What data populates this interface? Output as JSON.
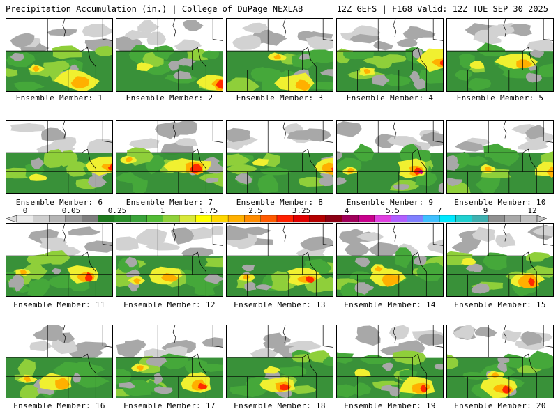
{
  "header": {
    "left_title": "Precipitation Accumulation (in.) | College of DuPage NEXLAB",
    "right_title": "12Z GEFS | F168 Valid: 12Z TUE SEP 30 2025"
  },
  "colorbar": {
    "labels": [
      "0",
      "0.05",
      "0.25",
      "1",
      "1.75",
      "2.5",
      "3.25",
      "4",
      "5.5",
      "7",
      "9",
      "12"
    ],
    "colors": [
      "#eaeaea",
      "#cfcfcf",
      "#b5b5b5",
      "#9a9a9a",
      "#7e7e7e",
      "#1e7a1e",
      "#2b8f2b",
      "#3aa33a",
      "#52bb35",
      "#8fd13a",
      "#d8e83a",
      "#ffff00",
      "#ffd700",
      "#ffb000",
      "#ff8c00",
      "#ff5a00",
      "#ff2000",
      "#e00000",
      "#b40000",
      "#8c0014",
      "#a0005a",
      "#c8008c",
      "#e040e0",
      "#b060ff",
      "#8080ff",
      "#40c0ff",
      "#00e8ff",
      "#20d0d0",
      "#40b0b0",
      "#909090",
      "#a8a8a8",
      "#c0c0c0"
    ]
  },
  "members": [
    {
      "label": "Ensemble Member: 1"
    },
    {
      "label": "Ensemble Member: 2"
    },
    {
      "label": "Ensemble Member: 3"
    },
    {
      "label": "Ensemble Member: 4"
    },
    {
      "label": "Ensemble Member: 5"
    },
    {
      "label": "Ensemble Member: 6"
    },
    {
      "label": "Ensemble Member: 7"
    },
    {
      "label": "Ensemble Member: 8"
    },
    {
      "label": "Ensemble Member: 9"
    },
    {
      "label": "Ensemble Member: 10"
    },
    {
      "label": "Ensemble Member: 11"
    },
    {
      "label": "Ensemble Member: 12"
    },
    {
      "label": "Ensemble Member: 13"
    },
    {
      "label": "Ensemble Member: 14"
    },
    {
      "label": "Ensemble Member: 15"
    },
    {
      "label": "Ensemble Member: 16"
    },
    {
      "label": "Ensemble Member: 17"
    },
    {
      "label": "Ensemble Member: 18"
    },
    {
      "label": "Ensemble Member: 19"
    },
    {
      "label": "Ensemble Member: 20"
    }
  ],
  "map_colors": {
    "light_gray": "#d2d2d2",
    "mid_gray": "#a8a8a8",
    "dark_gray": "#8a8a8a",
    "green_dark": "#2e8b2e",
    "green": "#45a83a",
    "green_light": "#8fcf3a",
    "yellow": "#f0f030",
    "orange": "#ffb000",
    "red": "#ff2a00",
    "magenta": "#c8008c",
    "border": "#000000"
  }
}
